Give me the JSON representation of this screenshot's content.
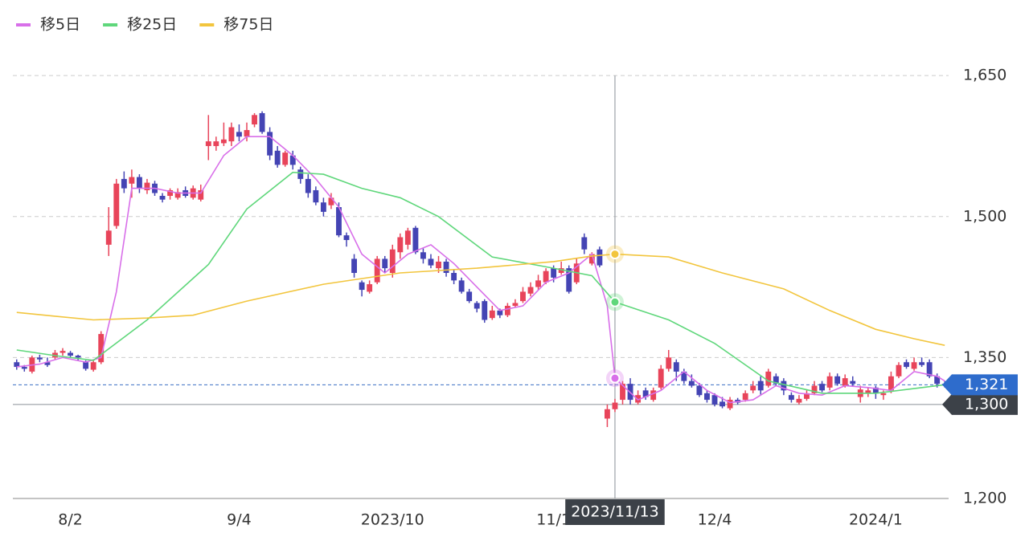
{
  "chart_data": {
    "type": "candlestick",
    "xlim": [
      -0.5,
      121.5
    ],
    "xticks": [
      {
        "value": 7,
        "label": "8/2"
      },
      {
        "value": 29,
        "label": "9/4"
      },
      {
        "value": 49,
        "label": "2023/10"
      },
      {
        "value": 70,
        "label": "11/1"
      },
      {
        "value": 91,
        "label": "12/4"
      },
      {
        "value": 112,
        "label": "2024/1"
      }
    ],
    "ylim": [
      1200,
      1680
    ],
    "yticks": [
      {
        "value": 1200,
        "label": "1,200"
      },
      {
        "value": 1350,
        "label": "1,350"
      },
      {
        "value": 1500,
        "label": "1,500"
      },
      {
        "value": 1650,
        "label": "1,650"
      }
    ],
    "grid": true,
    "up_color": "#e8445a",
    "down_color": "#4444b4",
    "candles": {
      "open": [
        1345,
        1340,
        1335,
        1350,
        1345,
        1350,
        1355,
        1355,
        1352,
        1345,
        1337,
        1345,
        1470,
        1490,
        1540,
        1535,
        1542,
        1528,
        1535,
        1522,
        1522,
        1520,
        1528,
        1520,
        1518,
        1575,
        1575,
        1578,
        1580,
        1590,
        1585,
        1598,
        1610,
        1590,
        1570,
        1555,
        1565,
        1550,
        1540,
        1528,
        1515,
        1512,
        1510,
        1480,
        1455,
        1430,
        1420,
        1430,
        1455,
        1440,
        1462,
        1470,
        1488,
        1462,
        1455,
        1445,
        1452,
        1440,
        1432,
        1420,
        1408,
        1410,
        1392,
        1400,
        1395,
        1405,
        1410,
        1418,
        1425,
        1430,
        1445,
        1440,
        1445,
        1430,
        1478,
        1450,
        1465,
        1285,
        1295,
        1305,
        1322,
        1302,
        1315,
        1305,
        1318,
        1338,
        1345,
        1335,
        1325,
        1320,
        1312,
        1310,
        1303,
        1296,
        1305,
        1305,
        1315,
        1325,
        1320,
        1330,
        1325,
        1310,
        1302,
        1306,
        1312,
        1322,
        1318,
        1330,
        1320,
        1325,
        1308,
        1312,
        1318,
        1310,
        1315,
        1330,
        1345,
        1338,
        1345,
        1345,
        1330,
        1322
      ],
      "high": [
        1348,
        1342,
        1352,
        1353,
        1350,
        1358,
        1360,
        1357,
        1353,
        1347,
        1348,
        1378,
        1510,
        1540,
        1548,
        1550,
        1545,
        1540,
        1538,
        1525,
        1530,
        1530,
        1532,
        1533,
        1534,
        1608,
        1585,
        1600,
        1600,
        1598,
        1600,
        1610,
        1612,
        1595,
        1575,
        1570,
        1570,
        1553,
        1545,
        1532,
        1520,
        1525,
        1515,
        1483,
        1460,
        1432,
        1432,
        1458,
        1458,
        1470,
        1482,
        1488,
        1490,
        1466,
        1460,
        1458,
        1455,
        1444,
        1435,
        1423,
        1410,
        1412,
        1405,
        1402,
        1408,
        1412,
        1425,
        1430,
        1438,
        1445,
        1448,
        1452,
        1448,
        1455,
        1482,
        1462,
        1468,
        1300,
        1306,
        1325,
        1328,
        1315,
        1318,
        1318,
        1342,
        1358,
        1348,
        1338,
        1332,
        1323,
        1315,
        1312,
        1308,
        1308,
        1307,
        1315,
        1325,
        1330,
        1338,
        1333,
        1328,
        1313,
        1310,
        1315,
        1325,
        1325,
        1334,
        1333,
        1332,
        1330,
        1320,
        1318,
        1320,
        1315,
        1335,
        1345,
        1348,
        1350,
        1350,
        1348,
        1333,
        1325
      ],
      "low": [
        1337,
        1335,
        1333,
        1345,
        1340,
        1348,
        1352,
        1350,
        1347,
        1336,
        1335,
        1343,
        1458,
        1487,
        1525,
        1520,
        1525,
        1524,
        1522,
        1515,
        1518,
        1518,
        1520,
        1518,
        1516,
        1560,
        1570,
        1575,
        1575,
        1580,
        1580,
        1595,
        1588,
        1560,
        1552,
        1553,
        1550,
        1535,
        1520,
        1512,
        1500,
        1508,
        1478,
        1468,
        1435,
        1415,
        1418,
        1428,
        1440,
        1435,
        1455,
        1465,
        1460,
        1450,
        1445,
        1440,
        1436,
        1428,
        1418,
        1408,
        1398,
        1387,
        1390,
        1392,
        1393,
        1403,
        1408,
        1415,
        1422,
        1428,
        1430,
        1438,
        1418,
        1428,
        1460,
        1448,
        1446,
        1276,
        1292,
        1300,
        1300,
        1300,
        1305,
        1303,
        1316,
        1335,
        1325,
        1322,
        1318,
        1308,
        1302,
        1298,
        1296,
        1294,
        1300,
        1303,
        1312,
        1310,
        1318,
        1320,
        1310,
        1302,
        1300,
        1304,
        1310,
        1313,
        1315,
        1320,
        1318,
        1320,
        1302,
        1308,
        1306,
        1305,
        1312,
        1328,
        1338,
        1336,
        1340,
        1328,
        1318,
        1318
      ],
      "close": [
        1340,
        1338,
        1350,
        1348,
        1342,
        1355,
        1357,
        1352,
        1350,
        1338,
        1345,
        1375,
        1485,
        1535,
        1530,
        1542,
        1530,
        1536,
        1525,
        1518,
        1528,
        1526,
        1522,
        1530,
        1528,
        1580,
        1580,
        1582,
        1595,
        1585,
        1592,
        1608,
        1590,
        1565,
        1555,
        1568,
        1555,
        1540,
        1525,
        1515,
        1505,
        1520,
        1480,
        1475,
        1440,
        1422,
        1428,
        1455,
        1445,
        1465,
        1478,
        1485,
        1462,
        1455,
        1448,
        1452,
        1440,
        1432,
        1420,
        1410,
        1402,
        1390,
        1400,
        1395,
        1405,
        1408,
        1420,
        1425,
        1432,
        1442,
        1435,
        1445,
        1420,
        1450,
        1465,
        1460,
        1448,
        1295,
        1302,
        1322,
        1305,
        1310,
        1308,
        1315,
        1338,
        1350,
        1335,
        1325,
        1320,
        1310,
        1305,
        1300,
        1298,
        1305,
        1302,
        1312,
        1320,
        1315,
        1335,
        1322,
        1315,
        1305,
        1306,
        1312,
        1320,
        1315,
        1330,
        1322,
        1328,
        1322,
        1316,
        1315,
        1312,
        1312,
        1330,
        1342,
        1340,
        1345,
        1342,
        1330,
        1322,
        1321
      ]
    },
    "series": [
      {
        "name": "移5日",
        "color": "#d86fe9",
        "x": [
          0,
          3,
          6,
          9,
          11,
          13,
          15,
          18,
          21,
          24,
          27,
          30,
          33,
          36,
          39,
          42,
          45,
          48,
          51,
          54,
          57,
          60,
          63,
          66,
          69,
          72,
          75,
          77,
          78,
          81,
          84,
          87,
          90,
          93,
          96,
          99,
          102,
          105,
          108,
          111,
          114,
          117,
          120,
          121
        ],
        "values": [
          1340,
          1343,
          1350,
          1345,
          1350,
          1420,
          1530,
          1530,
          1525,
          1525,
          1565,
          1585,
          1585,
          1565,
          1540,
          1510,
          1460,
          1440,
          1460,
          1470,
          1450,
          1425,
          1400,
          1405,
          1430,
          1440,
          1460,
          1405,
          1328,
          1305,
          1315,
          1335,
          1315,
          1302,
          1305,
          1320,
          1312,
          1310,
          1320,
          1318,
          1315,
          1335,
          1330,
          1325
        ]
      },
      {
        "name": "移25日",
        "color": "#5fd77b",
        "x": [
          0,
          5,
          10,
          17,
          25,
          30,
          36,
          40,
          45,
          50,
          55,
          62,
          70,
          75,
          78,
          85,
          91,
          98,
          105,
          112,
          121
        ],
        "values": [
          1358,
          1352,
          1347,
          1390,
          1449,
          1508,
          1547,
          1545,
          1530,
          1520,
          1500,
          1457,
          1445,
          1437,
          1409,
          1390,
          1365,
          1325,
          1312,
          1312,
          1321
        ]
      },
      {
        "name": "移75日",
        "color": "#f2c53d",
        "x": [
          0,
          5,
          10,
          17,
          23,
          30,
          40,
          50,
          60,
          70,
          75,
          78,
          85,
          92,
          100,
          106,
          112,
          117,
          121
        ],
        "values": [
          1398,
          1394,
          1390,
          1392,
          1395,
          1410,
          1428,
          1440,
          1445,
          1452,
          1458,
          1460,
          1457,
          1440,
          1423,
          1400,
          1380,
          1370,
          1363
        ]
      }
    ],
    "last_price": {
      "value": 1321,
      "label": "1,321"
    },
    "crosshair": {
      "x": 78,
      "x_label": "2023/11/13",
      "y": {
        "value": 1300,
        "label": "1,300"
      }
    }
  }
}
